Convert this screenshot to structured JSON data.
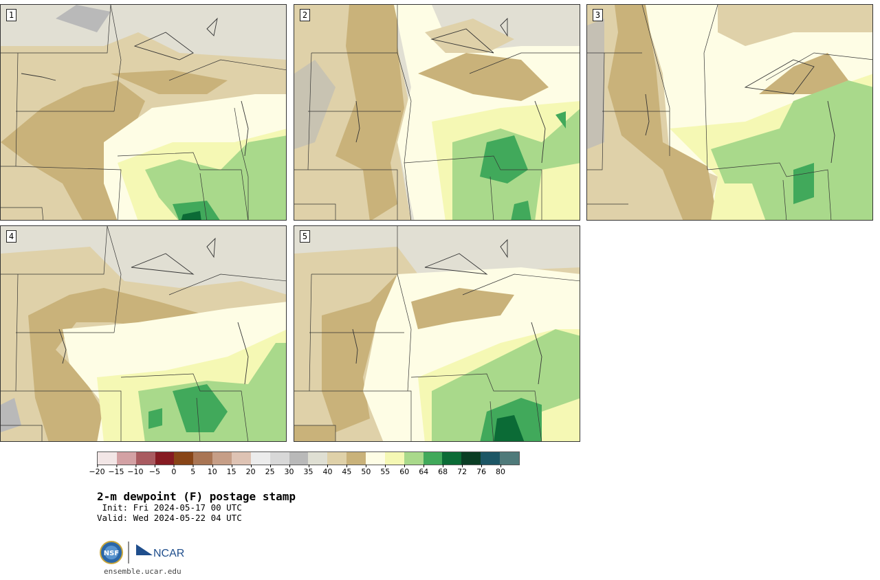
{
  "panels": [
    {
      "label": "1"
    },
    {
      "label": "2"
    },
    {
      "label": "3"
    },
    {
      "label": "4"
    },
    {
      "label": "5"
    }
  ],
  "colorbar": {
    "colors": [
      "#f2e6e6",
      "#d3a1a4",
      "#a95b60",
      "#861b22",
      "#884517",
      "#a97554",
      "#c69e87",
      "#dec3b4",
      "#ececec",
      "#d8d8d8",
      "#b9b9b9",
      "#dfdfd3",
      "#dfd1a9",
      "#c9b27a",
      "#fefde5",
      "#f5f8b4",
      "#a9d98b",
      "#41a95b",
      "#0b6b36",
      "#0a3d24",
      "#1c5665",
      "#4f7a7a"
    ],
    "tick_labels": [
      "−20",
      "−15",
      "−10",
      "−5",
      "0",
      "5",
      "10",
      "15",
      "20",
      "25",
      "30",
      "35",
      "40",
      "45",
      "50",
      "55",
      "60",
      "64",
      "68",
      "72",
      "76",
      "80"
    ]
  },
  "title": "2-m dewpoint (F) postage stamp",
  "init": " Init: Fri 2024-05-17 00 UTC",
  "valid": "Valid: Wed 2024-05-22 04 UTC",
  "logo": {
    "left": "NSF",
    "right": "NCAR"
  },
  "url": "ensemble.ucar.edu"
}
